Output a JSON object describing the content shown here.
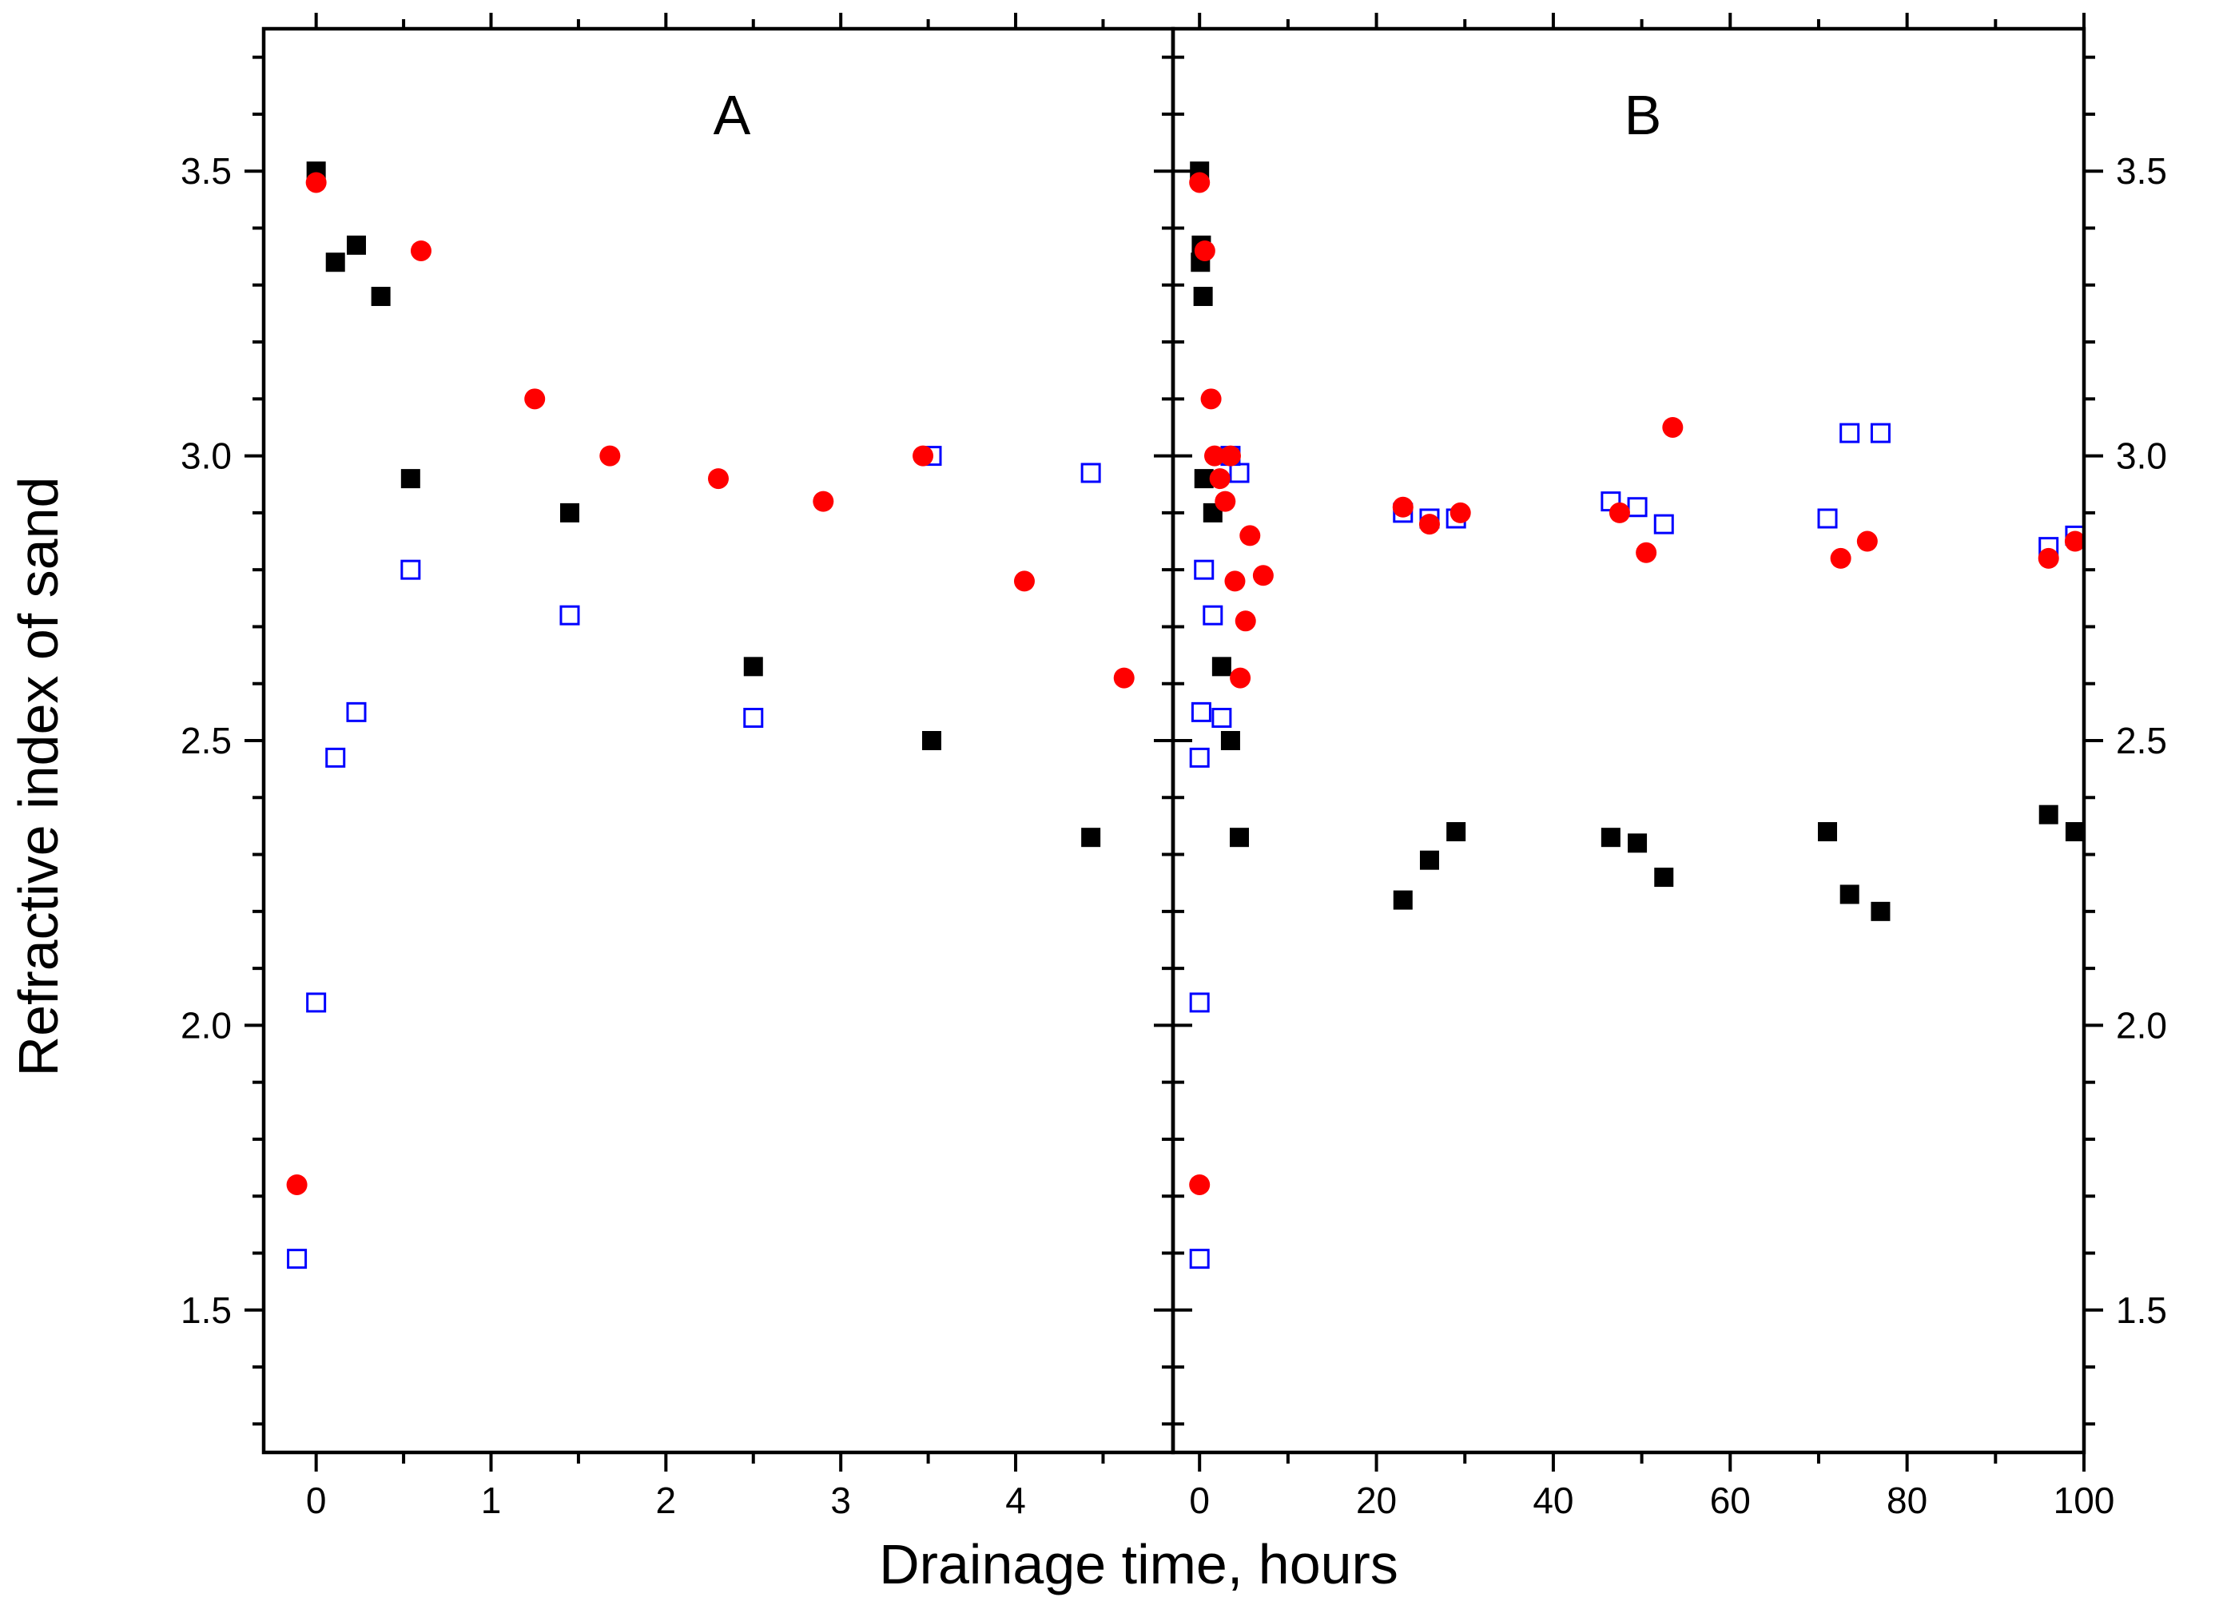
{
  "chart_data": {
    "type": "scatter",
    "ylabel": "Refractive index of sand",
    "xlabel": "Drainage time, hours",
    "ylim": [
      1.25,
      3.75
    ],
    "yticks": [
      1.5,
      2.0,
      2.5,
      3.0,
      3.5
    ],
    "ytick_labels": [
      "1.5",
      "2.0",
      "2.5",
      "3.0",
      "3.5"
    ],
    "series": [
      {
        "name": "filled-squares",
        "marker": "filled-square",
        "color": "#000000"
      },
      {
        "name": "filled-circles",
        "marker": "filled-circle",
        "color": "#ff0000"
      },
      {
        "name": "open-squares",
        "marker": "open-square",
        "color": "#0000ff"
      }
    ],
    "panels": [
      {
        "label": "A",
        "xlim": [
          -0.3,
          4.9
        ],
        "xticks": [
          0,
          1,
          2,
          3,
          4
        ],
        "xtick_labels": [
          "0",
          "1",
          "2",
          "3",
          "4"
        ],
        "points": {
          "filled-squares": [
            [
              0.0,
              3.5
            ],
            [
              0.11,
              3.34
            ],
            [
              0.23,
              3.37
            ],
            [
              0.37,
              3.28
            ],
            [
              0.54,
              2.96
            ],
            [
              1.45,
              2.9
            ],
            [
              2.5,
              2.63
            ],
            [
              3.52,
              2.5
            ],
            [
              4.43,
              2.33
            ]
          ],
          "filled-circles": [
            [
              -0.11,
              1.72
            ],
            [
              0.0,
              3.48
            ],
            [
              0.6,
              3.36
            ],
            [
              1.25,
              3.1
            ],
            [
              1.68,
              3.0
            ],
            [
              2.3,
              2.96
            ],
            [
              2.9,
              2.92
            ],
            [
              3.47,
              3.0
            ],
            [
              4.05,
              2.78
            ],
            [
              4.62,
              2.61
            ]
          ],
          "open-squares": [
            [
              -0.11,
              1.59
            ],
            [
              0.0,
              2.04
            ],
            [
              0.11,
              2.47
            ],
            [
              0.23,
              2.55
            ],
            [
              0.54,
              2.8
            ],
            [
              1.45,
              2.72
            ],
            [
              2.5,
              2.54
            ],
            [
              3.52,
              3.0
            ],
            [
              4.43,
              2.97
            ]
          ]
        }
      },
      {
        "label": "B",
        "xlim": [
          -3,
          100
        ],
        "xticks": [
          0,
          20,
          40,
          60,
          80,
          100
        ],
        "xtick_labels": [
          "0",
          "20",
          "40",
          "60",
          "80",
          "100"
        ],
        "points": {
          "filled-squares": [
            [
              0.0,
              3.5
            ],
            [
              0.2,
              3.37
            ],
            [
              0.1,
              3.34
            ],
            [
              0.4,
              3.28
            ],
            [
              0.5,
              2.96
            ],
            [
              1.5,
              2.9
            ],
            [
              2.5,
              2.63
            ],
            [
              3.5,
              2.5
            ],
            [
              4.5,
              2.33
            ],
            [
              23,
              2.22
            ],
            [
              26,
              2.29
            ],
            [
              29,
              2.34
            ],
            [
              46.5,
              2.33
            ],
            [
              49.5,
              2.32
            ],
            [
              52.5,
              2.26
            ],
            [
              71,
              2.34
            ],
            [
              73.5,
              2.23
            ],
            [
              77,
              2.2
            ],
            [
              96,
              2.37
            ],
            [
              99,
              2.34
            ]
          ],
          "filled-circles": [
            [
              0.0,
              1.72
            ],
            [
              0.0,
              3.48
            ],
            [
              0.6,
              3.36
            ],
            [
              1.3,
              3.1
            ],
            [
              1.7,
              3.0
            ],
            [
              2.3,
              2.96
            ],
            [
              2.9,
              2.92
            ],
            [
              3.5,
              3.0
            ],
            [
              4.0,
              2.78
            ],
            [
              4.6,
              2.61
            ],
            [
              5.2,
              2.71
            ],
            [
              5.7,
              2.86
            ],
            [
              7.2,
              2.79
            ],
            [
              23,
              2.91
            ],
            [
              26,
              2.88
            ],
            [
              29.5,
              2.9
            ],
            [
              47.5,
              2.9
            ],
            [
              50.5,
              2.83
            ],
            [
              53.5,
              3.05
            ],
            [
              72.5,
              2.82
            ],
            [
              75.5,
              2.85
            ],
            [
              96,
              2.82
            ],
            [
              99,
              2.85
            ]
          ],
          "open-squares": [
            [
              0.0,
              1.59
            ],
            [
              0.0,
              2.04
            ],
            [
              0.0,
              2.47
            ],
            [
              0.2,
              2.55
            ],
            [
              0.5,
              2.8
            ],
            [
              1.5,
              2.72
            ],
            [
              2.5,
              2.54
            ],
            [
              3.5,
              3.0
            ],
            [
              4.5,
              2.97
            ],
            [
              23,
              2.9
            ],
            [
              26,
              2.89
            ],
            [
              29,
              2.89
            ],
            [
              46.5,
              2.92
            ],
            [
              49.5,
              2.91
            ],
            [
              52.5,
              2.88
            ],
            [
              71,
              2.89
            ],
            [
              73.5,
              3.04
            ],
            [
              77,
              3.04
            ],
            [
              96,
              2.84
            ],
            [
              99,
              2.86
            ]
          ]
        }
      }
    ]
  }
}
